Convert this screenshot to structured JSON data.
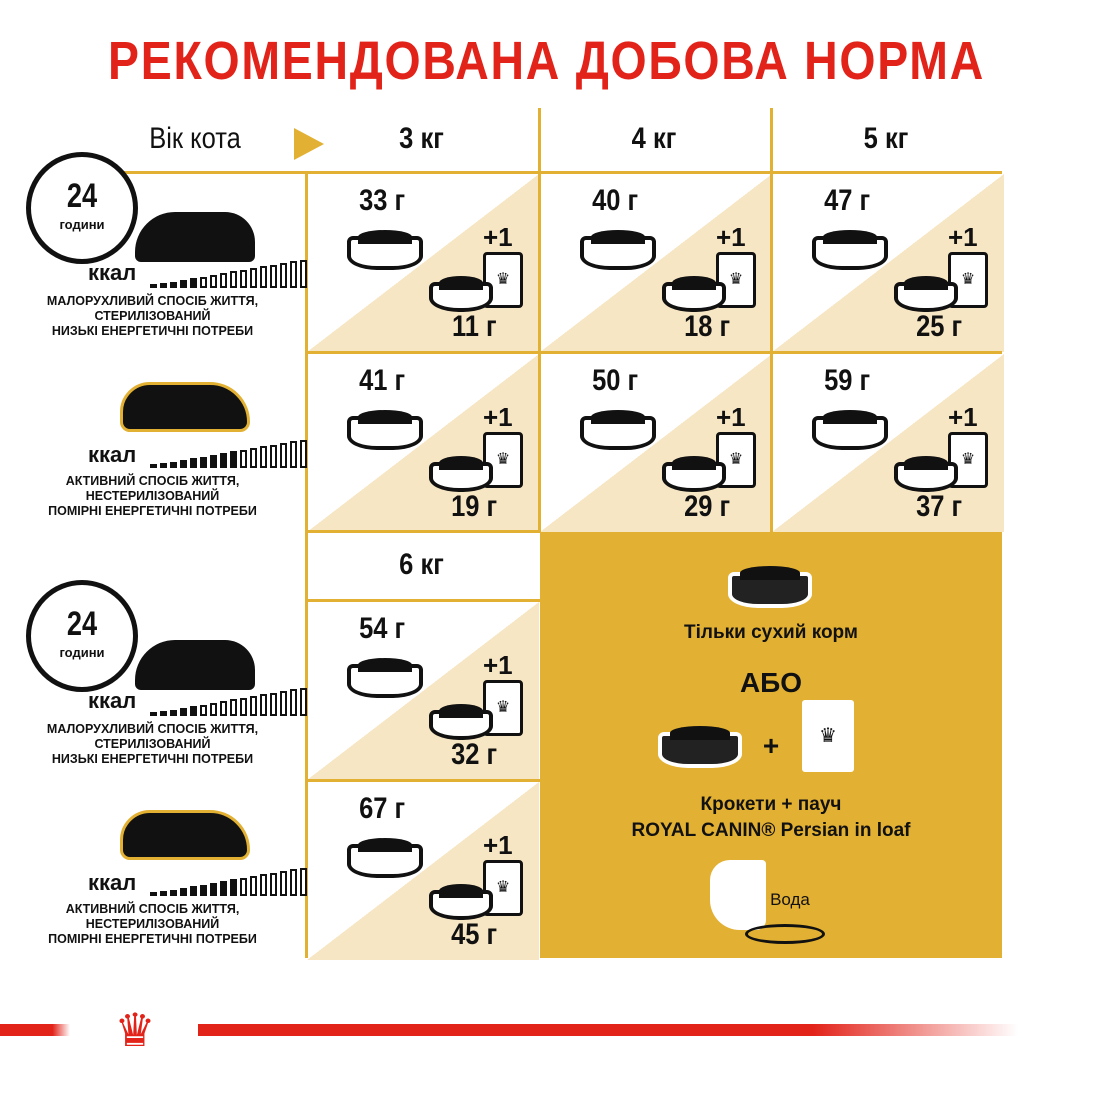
{
  "title": "РЕКОМЕНДОВАНА ДОБОВА НОРМА",
  "header": {
    "age_label": "Вік кота",
    "weights": [
      "3 кг",
      "4 кг",
      "5 кг"
    ],
    "weight_row3": "6 кг"
  },
  "profiles": [
    {
      "clock_value": "24",
      "clock_unit": "години",
      "kcal": "ккал",
      "lines": [
        "МАЛОРУХЛИВИЙ СПОСІБ ЖИТТЯ,",
        "СТЕРИЛІЗОВАНИЙ",
        "НИЗЬКІ ЕНЕРГЕТИЧНІ ПОТРЕБИ"
      ],
      "energy_level": "low"
    },
    {
      "kcal": "ккал",
      "lines": [
        "АКТИВНИЙ СПОСІБ ЖИТТЯ,",
        "НЕСТЕРИЛІЗОВАНИЙ",
        "ПОМІРНІ ЕНЕРГЕТИЧНІ ПОТРЕБИ"
      ],
      "energy_level": "moderate"
    },
    {
      "clock_value": "24",
      "clock_unit": "години",
      "kcal": "ккал",
      "lines": [
        "МАЛОРУХЛИВИЙ СПОСІБ ЖИТТЯ,",
        "СТЕРИЛІЗОВАНИЙ",
        "НИЗЬКІ ЕНЕРГЕТИЧНІ ПОТРЕБИ"
      ],
      "energy_level": "low"
    },
    {
      "kcal": "ккал",
      "lines": [
        "АКТИВНИЙ СПОСІБ ЖИТТЯ,",
        "НЕСТЕРИЛІЗОВАНИЙ",
        "ПОМІРНІ ЕНЕРГЕТИЧНІ ПОТРЕБИ"
      ],
      "energy_level": "moderate"
    }
  ],
  "pouch_label": "+1",
  "table": [
    [
      {
        "dry": "33 г",
        "wet": "11 г"
      },
      {
        "dry": "40 г",
        "wet": "18 г"
      },
      {
        "dry": "47 г",
        "wet": "25 г"
      }
    ],
    [
      {
        "dry": "41 г",
        "wet": "19 г"
      },
      {
        "dry": "50 г",
        "wet": "29 г"
      },
      {
        "dry": "59 г",
        "wet": "37 г"
      }
    ],
    [
      {
        "dry": "54 г",
        "wet": "32 г"
      }
    ],
    [
      {
        "dry": "67 г",
        "wet": "45 г"
      }
    ]
  ],
  "legend": {
    "dry_only": "Тільки сухий корм",
    "or": "АБО",
    "plus": "+",
    "combo_line1": "Крокети + пауч",
    "combo_line2": "ROYAL CANIN® Persian in loaf",
    "water": "Вода"
  },
  "colors": {
    "title": "#e2231a",
    "gold": "#e2b032",
    "cream": "#f7e6c4"
  }
}
